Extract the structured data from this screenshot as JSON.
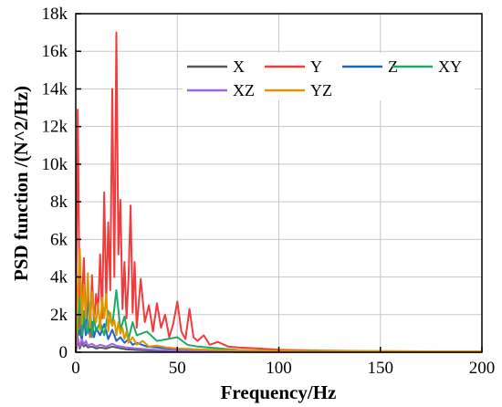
{
  "chart_data": {
    "type": "line",
    "xlabel": "Frequency/Hz",
    "ylabel": "PSD function /(N^2/Hz)",
    "xlim": [
      0,
      200
    ],
    "ylim": [
      0,
      18000
    ],
    "x_ticks": [
      0,
      50,
      100,
      150,
      200
    ],
    "x_tick_labels": [
      "0",
      "50",
      "100",
      "150",
      "200"
    ],
    "y_ticks": [
      0,
      2000,
      4000,
      6000,
      8000,
      10000,
      12000,
      14000,
      16000,
      18000
    ],
    "y_tick_labels": [
      "0",
      "2k",
      "4k",
      "6k",
      "8k",
      "10k",
      "12k",
      "14k",
      "16k",
      "18k"
    ],
    "grid": true,
    "legend_position": "top-center",
    "series": [
      {
        "name": "X",
        "color": "#555555",
        "x": [
          0,
          1,
          2,
          3,
          4,
          5,
          6,
          8,
          10,
          12,
          15,
          18,
          20,
          25,
          30,
          40,
          50,
          60,
          80,
          100,
          150,
          200
        ],
        "values": [
          0,
          600,
          200,
          500,
          300,
          400,
          250,
          300,
          200,
          250,
          200,
          300,
          250,
          150,
          120,
          80,
          60,
          40,
          20,
          10,
          5,
          5
        ]
      },
      {
        "name": "Y",
        "color": "#f03c3c",
        "x": [
          0,
          1,
          2,
          3,
          4,
          5,
          6,
          7,
          8,
          9,
          10,
          11,
          12,
          13,
          14,
          15,
          16,
          17,
          18,
          19,
          20,
          21,
          22,
          23,
          24,
          25,
          26,
          27,
          28,
          29,
          30,
          32,
          34,
          36,
          38,
          40,
          42,
          44,
          46,
          48,
          50,
          52,
          54,
          56,
          58,
          60,
          63,
          66,
          70,
          75,
          80,
          90,
          100,
          110,
          120,
          130,
          140,
          150,
          160,
          170,
          180,
          190,
          200
        ],
        "values": [
          200,
          12900,
          900,
          2500,
          5000,
          1200,
          3800,
          800,
          4100,
          1500,
          3100,
          2200,
          5200,
          1800,
          8500,
          2600,
          6900,
          3300,
          14000,
          4000,
          17000,
          5200,
          8100,
          2300,
          4800,
          1800,
          3900,
          7800,
          2100,
          4800,
          1300,
          3900,
          1600,
          2500,
          1100,
          2600,
          1300,
          2000,
          800,
          1500,
          2700,
          1100,
          700,
          2300,
          800,
          600,
          900,
          400,
          550,
          300,
          250,
          200,
          130,
          110,
          90,
          80,
          70,
          60,
          55,
          50,
          45,
          40,
          35
        ]
      },
      {
        "name": "Z",
        "color": "#1e64c8",
        "x": [
          0,
          1,
          2,
          3,
          4,
          5,
          6,
          7,
          8,
          9,
          10,
          12,
          14,
          16,
          18,
          20,
          22,
          24,
          26,
          28,
          30,
          35,
          40,
          50,
          60,
          80,
          100,
          150,
          200
        ],
        "values": [
          0,
          900,
          1200,
          600,
          1800,
          900,
          3200,
          1100,
          1600,
          800,
          1300,
          900,
          1500,
          700,
          1200,
          600,
          800,
          500,
          700,
          400,
          500,
          300,
          250,
          150,
          100,
          50,
          30,
          20,
          15
        ]
      },
      {
        "name": "XY",
        "color": "#1eaa64",
        "x": [
          0,
          1,
          2,
          3,
          4,
          5,
          6,
          7,
          8,
          9,
          10,
          12,
          14,
          16,
          18,
          20,
          22,
          24,
          26,
          28,
          30,
          35,
          40,
          45,
          50,
          55,
          60,
          80,
          100,
          150,
          200
        ],
        "values": [
          0,
          1200,
          2900,
          900,
          2200,
          1300,
          1000,
          2600,
          800,
          1800,
          1100,
          1600,
          900,
          2200,
          1400,
          3300,
          1200,
          1900,
          700,
          1600,
          900,
          1100,
          600,
          700,
          800,
          400,
          300,
          120,
          60,
          30,
          20
        ]
      },
      {
        "name": "XZ",
        "color": "#a064e6",
        "x": [
          0,
          1,
          2,
          3,
          4,
          5,
          6,
          8,
          10,
          12,
          15,
          18,
          20,
          25,
          30,
          40,
          50,
          60,
          80,
          100,
          150,
          200
        ],
        "values": [
          0,
          800,
          300,
          700,
          400,
          600,
          350,
          450,
          300,
          400,
          300,
          450,
          350,
          250,
          200,
          120,
          90,
          60,
          30,
          15,
          8,
          5
        ]
      },
      {
        "name": "YZ",
        "color": "#dc9600",
        "x": [
          0,
          1,
          2,
          3,
          4,
          5,
          6,
          7,
          8,
          9,
          10,
          11,
          12,
          13,
          14,
          15,
          16,
          17,
          18,
          19,
          20,
          21,
          22,
          23,
          24,
          25,
          26,
          28,
          30,
          33,
          36,
          40,
          45,
          50,
          55,
          60,
          70,
          80,
          90,
          100,
          120,
          140,
          160,
          180,
          200
        ],
        "values": [
          100,
          3000,
          5500,
          1500,
          3600,
          1800,
          4200,
          1300,
          3200,
          2000,
          1600,
          2600,
          1200,
          2900,
          1800,
          3100,
          1100,
          2100,
          1400,
          1700,
          900,
          1600,
          1000,
          1300,
          700,
          1100,
          500,
          800,
          400,
          600,
          300,
          350,
          250,
          200,
          180,
          150,
          120,
          100,
          90,
          80,
          70,
          60,
          55,
          50,
          50
        ]
      }
    ]
  }
}
